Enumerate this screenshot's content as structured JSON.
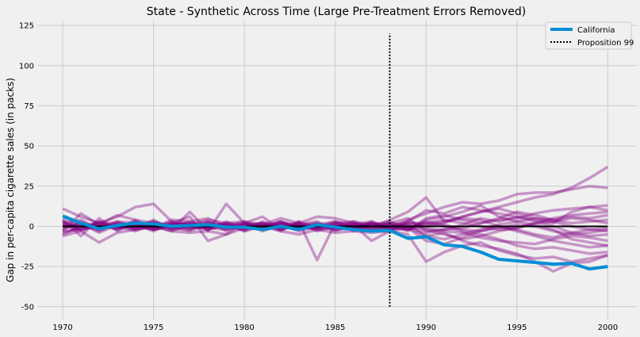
{
  "chart_data": {
    "type": "line",
    "title": "State - Synthetic Across Time (Large Pre-Treatment Errors Removed)",
    "xlabel": "",
    "ylabel": "Gap in per-capita cigarette sales (in packs)",
    "xlim": [
      1968.6,
      2001.6
    ],
    "ylim": [
      -58,
      128
    ],
    "xticks": [
      1970,
      1975,
      1980,
      1985,
      1990,
      1995,
      2000
    ],
    "yticks": [
      -50,
      -25,
      0,
      25,
      50,
      75,
      100,
      125
    ],
    "x": [
      1970,
      1971,
      1972,
      1973,
      1974,
      1975,
      1976,
      1977,
      1978,
      1979,
      1980,
      1981,
      1982,
      1983,
      1984,
      1985,
      1986,
      1987,
      1988,
      1989,
      1990,
      1991,
      1992,
      1993,
      1994,
      1995,
      1996,
      1997,
      1998,
      1999,
      2000
    ],
    "grid": true,
    "legend_position": "top-right",
    "colors": {
      "treated": "#008fd5",
      "placebo": "#800080",
      "zero_line": "#000000",
      "intervention": "#000000"
    },
    "treated_series": {
      "name": "California",
      "values": [
        6.5,
        2.0,
        -1.5,
        0.5,
        2.0,
        1.5,
        0.0,
        0.5,
        1.0,
        -0.5,
        -0.5,
        -2.0,
        0.0,
        -2.0,
        1.0,
        -0.5,
        -2.0,
        -3.0,
        -2.5,
        -7.5,
        -6.5,
        -11.5,
        -12.5,
        -16.0,
        -20.5,
        -21.5,
        -22.5,
        -23.5,
        -23.0,
        -26.5,
        -25.0
      ]
    },
    "placebo_series": [
      [
        11,
        6,
        2,
        6,
        12,
        14,
        3,
        1,
        4,
        2,
        1,
        2,
        -1,
        0,
        -1,
        2,
        3,
        1,
        2,
        5,
        -3,
        -2,
        1,
        5,
        3,
        6,
        4,
        2,
        9,
        12,
        10
      ],
      [
        -6,
        -3,
        -10,
        -4,
        -2,
        0,
        -3,
        -4,
        -3,
        -5,
        -1,
        0,
        -3,
        -5,
        -2,
        -4,
        -3,
        -4,
        -3,
        -5,
        -22,
        -16,
        -12,
        -10,
        -15,
        -18,
        -20,
        -19,
        -22,
        -20,
        -18
      ],
      [
        4,
        -6,
        5,
        -3,
        3,
        -1,
        4,
        3,
        5,
        0,
        3,
        1,
        5,
        2,
        6,
        5,
        2,
        -1,
        4,
        9,
        18,
        3,
        6,
        9,
        12,
        15,
        18,
        20,
        24,
        30,
        37
      ],
      [
        -3,
        8,
        1,
        7,
        4,
        -2,
        2,
        6,
        -9,
        -5,
        2,
        6,
        -2,
        3,
        -21,
        2,
        1,
        -9,
        -3,
        -1,
        -6,
        -4,
        -9,
        -12,
        -14,
        -17,
        -22,
        -28,
        -23,
        -22,
        -18
      ],
      [
        2,
        -2,
        3,
        1,
        -1,
        4,
        -2,
        9,
        -3,
        14,
        2,
        -1,
        3,
        -1,
        1,
        -2,
        0,
        1,
        -1,
        4,
        8,
        12,
        15,
        14,
        16,
        20,
        21,
        21,
        23,
        25,
        24
      ],
      [
        0,
        2,
        -3,
        2,
        1,
        0,
        2,
        -1,
        0,
        1,
        -3,
        2,
        0,
        1,
        -2,
        1,
        0,
        2,
        -1,
        -2,
        4,
        6,
        9,
        13,
        6,
        3,
        1,
        -2,
        -8,
        -10,
        -12
      ],
      [
        3,
        0,
        1,
        -2,
        4,
        2,
        -1,
        1,
        3,
        -2,
        0,
        -1,
        2,
        0,
        1,
        3,
        -1,
        0,
        2,
        1,
        -2,
        -5,
        -8,
        -6,
        -3,
        -1,
        2,
        5,
        7,
        8,
        9
      ],
      [
        -2,
        3,
        -1,
        0,
        -3,
        1,
        -2,
        0,
        -1,
        2,
        3,
        -2,
        1,
        -3,
        0,
        -1,
        2,
        -2,
        0,
        3,
        10,
        8,
        12,
        10,
        8,
        6,
        3,
        0,
        -4,
        -6,
        -5
      ],
      [
        1,
        -3,
        2,
        -1,
        0,
        -2,
        1,
        2,
        -1,
        0,
        -2,
        3,
        -1,
        2,
        -3,
        0,
        -2,
        1,
        3,
        -1,
        2,
        0,
        -3,
        -5,
        -8,
        -12,
        -14,
        -13,
        -15,
        -17,
        -16
      ],
      [
        -1,
        1,
        0,
        3,
        2,
        -1,
        3,
        -2,
        2,
        1,
        -1,
        0,
        3,
        -2,
        2,
        -3,
        1,
        3,
        -2,
        0,
        -4,
        -2,
        -1,
        2,
        4,
        5,
        8,
        10,
        11,
        12,
        13
      ],
      [
        5,
        2,
        -4,
        1,
        -2,
        3,
        0,
        -3,
        1,
        -1,
        2,
        -3,
        1,
        2,
        -1,
        0,
        3,
        -1,
        1,
        -2,
        1,
        3,
        5,
        4,
        0,
        -3,
        -6,
        -9,
        -11,
        -13,
        -12
      ],
      [
        -4,
        -1,
        3,
        -2,
        1,
        -3,
        2,
        1,
        -2,
        3,
        -2,
        1,
        -2,
        1,
        3,
        -2,
        -1,
        2,
        -3,
        2,
        -1,
        -3,
        -4,
        -7,
        -9,
        -10,
        -11,
        -8,
        -6,
        -7,
        -9
      ],
      [
        2,
        4,
        -2,
        3,
        -1,
        2,
        -1,
        -2,
        3,
        -3,
        1,
        -2,
        2,
        -1,
        0,
        2,
        -3,
        0,
        1,
        -3,
        5,
        7,
        4,
        2,
        5,
        9,
        7,
        4,
        2,
        3,
        4
      ],
      [
        -3,
        -2,
        1,
        -1,
        3,
        -1,
        1,
        2,
        -2,
        1,
        0,
        2,
        -3,
        3,
        -1,
        1,
        -2,
        3,
        -1,
        1,
        -6,
        -8,
        -5,
        -2,
        1,
        3,
        5,
        4,
        6,
        5,
        7
      ],
      [
        0,
        1,
        -1,
        2,
        -2,
        0,
        -3,
        1,
        0,
        -1,
        2,
        0,
        -2,
        1,
        2,
        -2,
        1,
        -3,
        2,
        -2,
        3,
        1,
        -2,
        -3,
        0,
        -2,
        -5,
        -7,
        -4,
        -2,
        -1
      ],
      [
        1,
        -1,
        2,
        0,
        1,
        -2,
        1,
        -1,
        2,
        0,
        -1,
        1,
        0,
        -2,
        1,
        0,
        -1,
        2,
        -2,
        3,
        0,
        2,
        6,
        9,
        11,
        8,
        5,
        3,
        0,
        -2,
        -3
      ],
      [
        -5,
        0,
        -2,
        1,
        -1,
        3,
        -1,
        0,
        -2,
        2,
        -3,
        0,
        2,
        -1,
        -1,
        3,
        0,
        -2,
        1,
        -1,
        -9,
        -11,
        -7,
        -3,
        -1,
        1,
        0,
        -3,
        -5,
        -4,
        -2
      ],
      [
        3,
        -2,
        0,
        -1,
        2,
        -2,
        0,
        3,
        -1,
        -2,
        1,
        -1,
        3,
        0,
        -2,
        -1,
        2,
        0,
        -2,
        2,
        2,
        4,
        2,
        0,
        -2,
        -1,
        2,
        3,
        5,
        4,
        2
      ]
    ],
    "intervention": {
      "name": "Proposition 99",
      "x": 1988,
      "y_range": [
        -50,
        120
      ]
    }
  }
}
